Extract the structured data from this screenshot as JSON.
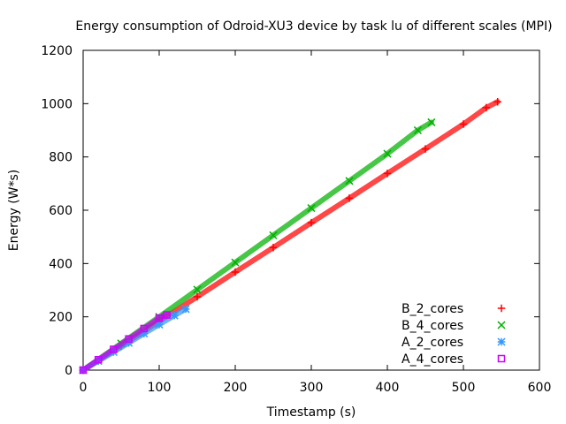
{
  "chart_data": {
    "type": "scatter",
    "title": "Energy consumption of Odroid-XU3 device by task lu of different scales (MPI)",
    "xlabel": "Timestamp (s)",
    "ylabel": "Energy (W*s)",
    "xlim": [
      0,
      600
    ],
    "ylim": [
      0,
      1200
    ],
    "x_ticks": [
      0,
      100,
      200,
      300,
      400,
      500,
      600
    ],
    "y_ticks": [
      0,
      200,
      400,
      600,
      800,
      1000,
      1200
    ],
    "x_tick_labels": [
      "0",
      "100",
      "200",
      "300",
      "400",
      "500",
      "600"
    ],
    "y_tick_labels": [
      "0",
      "200",
      "400",
      "600",
      "800",
      "1000",
      "1200"
    ],
    "grid": false,
    "legend_position": "bottom-right",
    "series": [
      {
        "name": "B_2_cores",
        "marker": "plus",
        "color": "#ff0000",
        "x": [
          0,
          50,
          100,
          150,
          200,
          250,
          300,
          350,
          400,
          450,
          500,
          530,
          545
        ],
        "y": [
          0,
          90,
          183,
          275,
          368,
          460,
          553,
          645,
          738,
          830,
          923,
          985,
          1007
        ]
      },
      {
        "name": "B_4_cores",
        "marker": "cross",
        "color": "#00b000",
        "x": [
          0,
          50,
          100,
          150,
          200,
          250,
          300,
          350,
          400,
          440,
          458
        ],
        "y": [
          0,
          100,
          200,
          302,
          404,
          506,
          608,
          710,
          812,
          900,
          930
        ]
      },
      {
        "name": "A_2_cores",
        "marker": "star",
        "color": "#3399ff",
        "x": [
          0,
          20,
          40,
          60,
          80,
          100,
          120,
          135
        ],
        "y": [
          0,
          34,
          68,
          102,
          137,
          171,
          205,
          229
        ]
      },
      {
        "name": "A_4_cores",
        "marker": "square",
        "color": "#cc00ff",
        "x": [
          0,
          20,
          40,
          60,
          80,
          100,
          110
        ],
        "y": [
          0,
          39,
          78,
          117,
          156,
          195,
          207
        ]
      }
    ]
  }
}
